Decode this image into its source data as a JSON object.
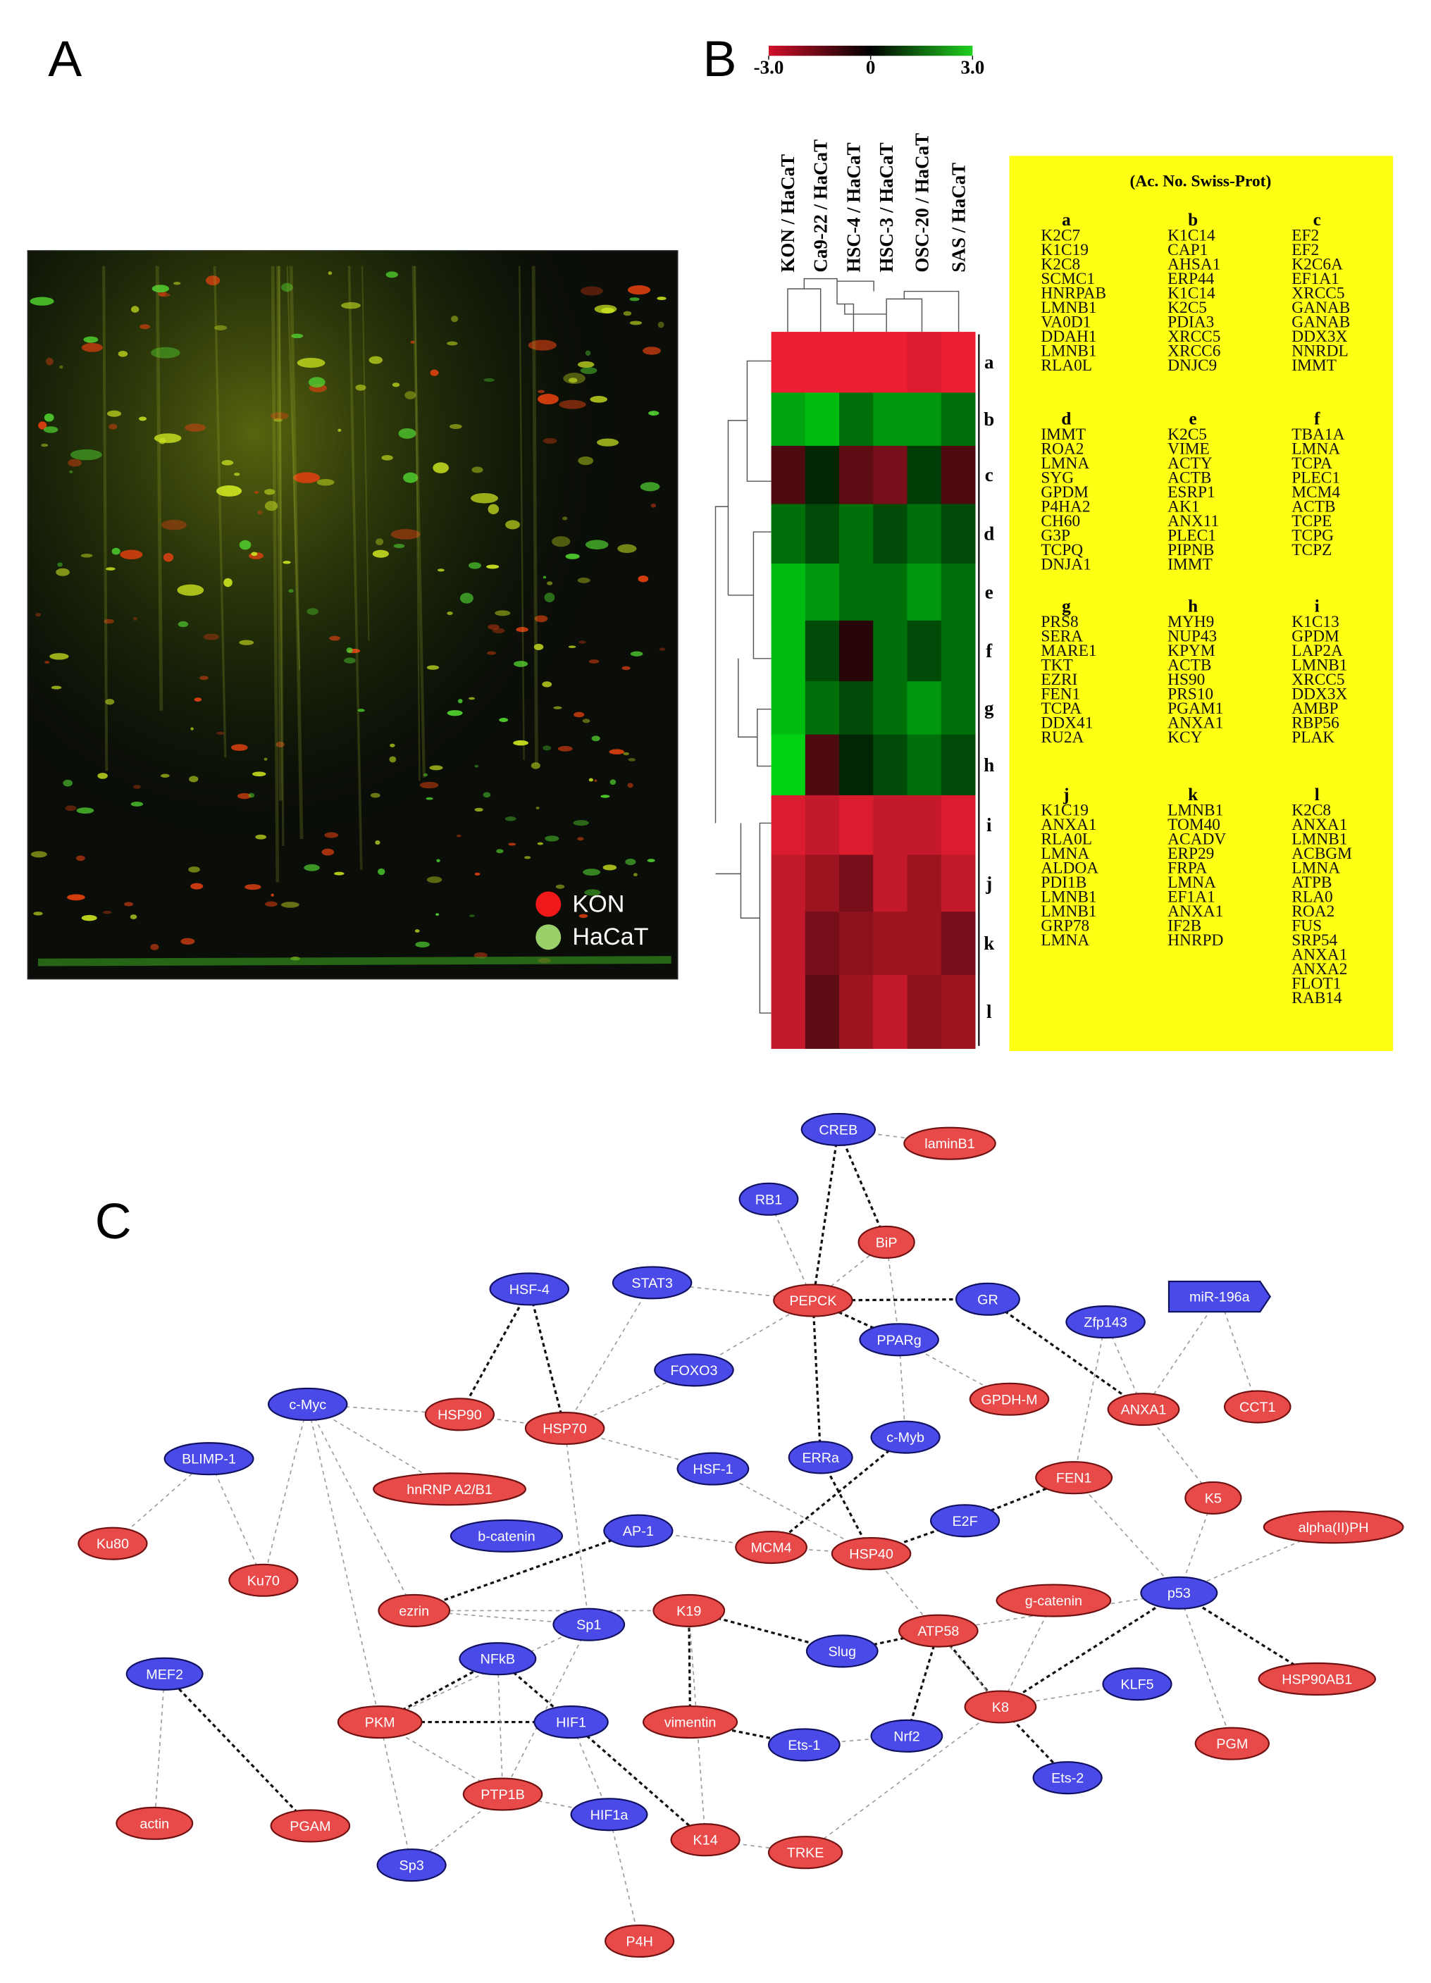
{
  "panel_a": {
    "label": "A",
    "legend": [
      "KON",
      "HaCaT"
    ]
  },
  "panel_b": {
    "label": "B",
    "colorbar": {
      "range": [
        -3,
        3
      ],
      "ticks": [
        {
          "value": -3,
          "label": "-3.0"
        },
        0,
        {
          "value": 3,
          "label": "3.0"
        }
      ]
    },
    "heatmap": {
      "columns": [
        "KON / HaCaT",
        "Ca9-22 / HaCaT",
        "HSC-4 / HaCaT",
        "HSC-3 / HaCaT",
        "OSC-20 / HaCaT",
        "SAS / HaCaT"
      ],
      "clusters": [
        {
          "label": "a",
          "values": [
            -3,
            -3,
            -3,
            -3,
            -2.8,
            -3
          ]
        },
        {
          "label": "b",
          "values": [
            2.2,
            2.5,
            1.5,
            2,
            2,
            1.5
          ]
        },
        {
          "label": "c",
          "values": [
            -1,
            0.5,
            -1.2,
            -1.5,
            0.8,
            -1
          ]
        },
        {
          "label": "d",
          "values": [
            1.5,
            1,
            1.5,
            1,
            1.5,
            1
          ]
        },
        {
          "label": "e",
          "values": [
            2.5,
            2,
            1.5,
            1.5,
            2,
            1.5
          ]
        },
        {
          "label": "f",
          "values": [
            2.5,
            1,
            -0.5,
            1.5,
            1,
            1.5
          ]
        },
        {
          "label": "g",
          "values": [
            2.5,
            1.5,
            1,
            1.5,
            2,
            1.5
          ]
        },
        {
          "label": "h",
          "values": [
            2.8,
            -1,
            0.5,
            1,
            1.5,
            1
          ]
        },
        {
          "label": "i",
          "values": [
            -2.8,
            -2.5,
            -2.8,
            -2.5,
            -2.5,
            -2.8
          ]
        },
        {
          "label": "j",
          "values": [
            -2.5,
            -2,
            -1.5,
            -2.5,
            -2,
            -2.5
          ]
        },
        {
          "label": "k",
          "values": [
            -2.5,
            -1.5,
            -1.8,
            -2,
            -2,
            -1.5
          ]
        },
        {
          "label": "l",
          "values": [
            -2.5,
            -1.2,
            -2,
            -2.5,
            -1.8,
            -2
          ]
        }
      ]
    },
    "protein_table": {
      "title": "(Ac. No. Swiss-Prot)",
      "groups": [
        {
          "label": "a",
          "items": [
            "K2C7",
            "K1C19",
            "K2C8",
            "SCMC1",
            "HNRPAB",
            "LMNB1",
            "VA0D1",
            "DDAH1",
            "LMNB1",
            "RLA0L"
          ]
        },
        {
          "label": "b",
          "items": [
            "K1C14",
            "CAP1",
            "AHSA1",
            "ERP44",
            "K1C14",
            "K2C5",
            "PDIA3",
            "XRCC5",
            "XRCC6",
            "DNJC9"
          ]
        },
        {
          "label": "c",
          "items": [
            "EF2",
            "EF2",
            "K2C6A",
            "EF1A1",
            "XRCC5",
            "GANAB",
            "GANAB",
            "DDX3X",
            "NNRDL",
            "IMMT"
          ]
        },
        {
          "label": "d",
          "items": [
            "IMMT",
            "ROA2",
            "LMNA",
            "SYG",
            "GPDM",
            "P4HA2",
            "CH60",
            "G3P",
            "TCPQ",
            "DNJA1"
          ]
        },
        {
          "label": "e",
          "items": [
            "K2C5",
            "VIME",
            "ACTY",
            "ACTB",
            "ESRP1",
            "AK1",
            "ANX11",
            "PLEC1",
            "PIPNB",
            "IMMT"
          ]
        },
        {
          "label": "f",
          "items": [
            "TBA1A",
            "LMNA",
            "TCPA",
            "PLEC1",
            "MCM4",
            "ACTB",
            "TCPE",
            "TCPG",
            "TCPZ"
          ]
        },
        {
          "label": "g",
          "items": [
            "PRS8",
            "SERA",
            "MARE1",
            "TKT",
            "EZRI",
            "FEN1",
            "TCPA",
            "DDX41",
            "RU2A"
          ]
        },
        {
          "label": "h",
          "items": [
            "MYH9",
            "NUP43",
            "KPYM",
            "ACTB",
            "HS90",
            "PRS10",
            "PGAM1",
            "ANXA1",
            "KCY"
          ]
        },
        {
          "label": "i",
          "items": [
            "K1C13",
            "GPDM",
            "LAP2A",
            "LMNB1",
            "XRCC5",
            "DDX3X",
            "AMBP",
            "RBP56",
            "PLAK"
          ]
        },
        {
          "label": "j",
          "items": [
            "K1C19",
            "ANXA1",
            "RLA0L",
            "LMNA",
            "ALDOA",
            "PDI1B",
            "LMNB1",
            "LMNB1",
            "GRP78",
            "LMNA"
          ]
        },
        {
          "label": "k",
          "items": [
            "LMNB1",
            "TOM40",
            "ACADV",
            "ERP29",
            "FRPA",
            "LMNA",
            "EF1A1",
            "ANXA1",
            "IF2B",
            "HNRPD"
          ]
        },
        {
          "label": "l",
          "items": [
            "K2C8",
            "ANXA1",
            "LMNB1",
            "ACBGM",
            "LMNA",
            "ATPB",
            "RLA0",
            "ROA2",
            "FUS",
            "SRP54",
            "ANXA1",
            "ANXA2",
            "FLOT1",
            "RAB14"
          ]
        }
      ]
    }
  },
  "panel_c": {
    "label": "C",
    "nodes": [
      "CREB",
      "laminB1",
      "RB1",
      "BiP",
      "HSF-4",
      "STAT3",
      "PEPCK",
      "GR",
      "miR-196a",
      "Zfp143",
      "PPARg",
      "FOXO3",
      "GPDH-M",
      "c-Myc",
      "HSP90",
      "HSP70",
      "ANXA1",
      "CCT1",
      "ERRa",
      "c-Myb",
      "BLIMP-1",
      "HSF-1",
      "hnRNP A2/B1",
      "FEN1",
      "K5",
      "alpha(II)PH",
      "Ku80",
      "AP-1",
      "b-catenin",
      "MCM4",
      "HSP40",
      "E2F",
      "Ku70",
      "g-catenin",
      "p53",
      "ezrin",
      "Sp1",
      "K19",
      "ATP58",
      "Slug",
      "NFkB",
      "MEF2",
      "KLF5",
      "HSP90AB1",
      "K8",
      "PKM",
      "HIF1",
      "vimentin",
      "Ets-1",
      "Nrf2",
      "PGM",
      "Ets-2",
      "PTP1B",
      "HIF1a",
      "actin",
      "PGAM",
      "K14",
      "TRKE",
      "Sp3",
      "P4H"
    ]
  }
}
